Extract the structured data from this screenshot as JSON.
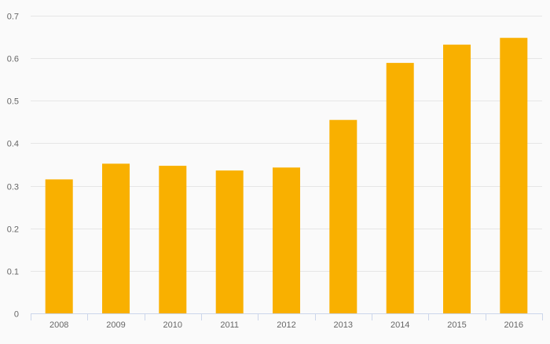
{
  "chart_data": {
    "type": "bar",
    "categories": [
      "2008",
      "2009",
      "2010",
      "2011",
      "2012",
      "2013",
      "2014",
      "2015",
      "2016"
    ],
    "values": [
      0.315,
      0.352,
      0.347,
      0.336,
      0.343,
      0.455,
      0.589,
      0.632,
      0.648
    ],
    "title": "",
    "xlabel": "",
    "ylabel": "",
    "ylim": [
      0,
      0.7
    ],
    "yticks": [
      "0",
      "0.1",
      "0.2",
      "0.3",
      "0.4",
      "0.5",
      "0.6",
      "0.7"
    ],
    "grid": true,
    "legend": "none",
    "bar_color": "#f9b000",
    "grid_color": "#e6e6e6",
    "axis_color": "#ccd6eb"
  }
}
